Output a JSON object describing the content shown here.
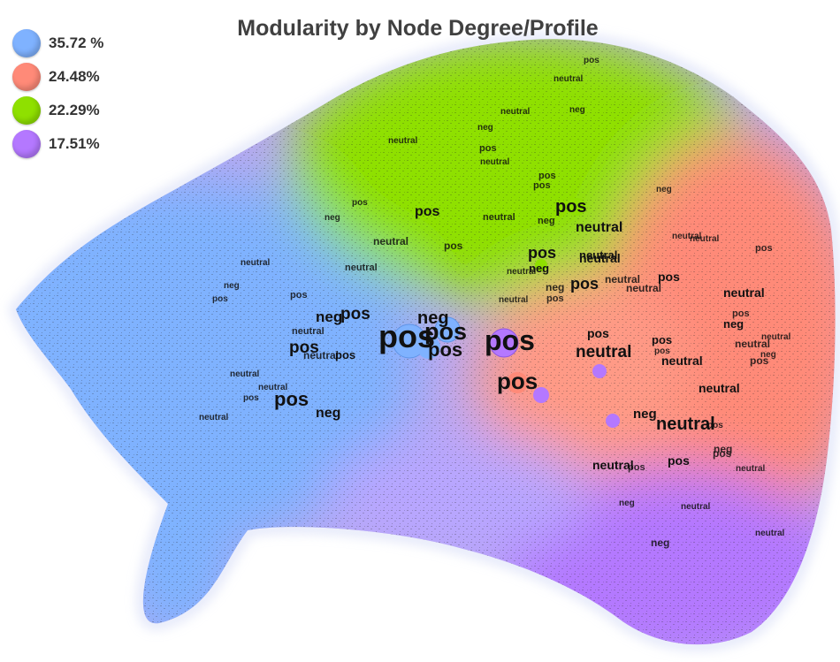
{
  "title": "Modularity by Node Degree/Profile",
  "legend": [
    {
      "label": "35.72 %",
      "color": "#7fb2ff"
    },
    {
      "label": "24.48%",
      "color": "#ff8a78"
    },
    {
      "label": "22.29%",
      "color": "#8fe000"
    },
    {
      "label": "17.51%",
      "color": "#b478ff"
    }
  ],
  "node_labels": [
    "pos",
    "neg",
    "neutral"
  ],
  "colors": {
    "blue": "#7fb2ff",
    "salmon": "#ff8a78",
    "green": "#8fe000",
    "purple": "#b478ff",
    "label_text": "#111111"
  }
}
